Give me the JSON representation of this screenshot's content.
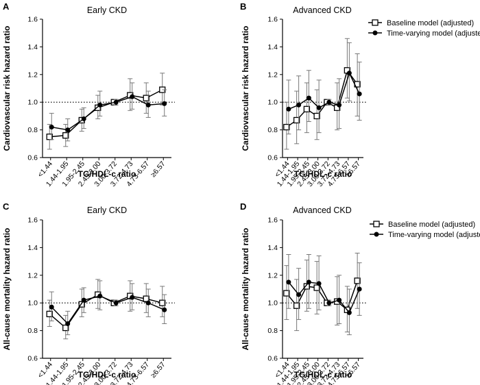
{
  "chart_data": [
    {
      "type": "line",
      "panel_letter": "A",
      "title": "Early CKD",
      "xlabel": "TG/HDL-c ratio",
      "ylabel": "Cardiovascular risk hazard ratio",
      "categories": [
        "<1.44",
        "1.44-1.95",
        "1.95-2.45",
        "2.45-3.00",
        "3.00-3.72",
        "3.72-4.73",
        "4.73-6.57",
        "≥6.57"
      ],
      "ylim": [
        0.6,
        1.6
      ],
      "yticks": [
        "0.6",
        "0.8",
        "1.0",
        "1.2",
        "1.4",
        "1.6"
      ],
      "reference_line": 1.0,
      "legend": false,
      "series": [
        {
          "name": "Baseline model (adjusted)",
          "marker": "open-square",
          "values": [
            0.75,
            0.76,
            0.87,
            0.96,
            1.0,
            1.05,
            1.03,
            1.09
          ],
          "lower": [
            0.66,
            0.68,
            0.79,
            0.88,
            0.98,
            0.94,
            0.92,
            0.98
          ],
          "upper": [
            0.84,
            0.84,
            0.95,
            1.05,
            1.02,
            1.17,
            1.14,
            1.21
          ]
        },
        {
          "name": "Time-varying model (adjusted)",
          "marker": "filled-circle",
          "values": [
            0.82,
            0.8,
            0.88,
            0.98,
            1.0,
            1.04,
            0.98,
            0.99
          ],
          "lower": [
            0.73,
            0.72,
            0.81,
            0.9,
            0.98,
            0.95,
            0.89,
            0.9
          ],
          "upper": [
            0.92,
            0.88,
            0.96,
            1.08,
            1.02,
            1.14,
            1.08,
            1.09
          ]
        }
      ]
    },
    {
      "type": "line",
      "panel_letter": "B",
      "title": "Advanced CKD",
      "xlabel": "TG/HDL-c ratio",
      "ylabel": "Cardiovascular risk hazard ratio",
      "categories": [
        "<1.44",
        "1.44-1.95",
        "1.95-2.45",
        "2.45-3.00",
        "3.00-3.72",
        "3.72-4.73",
        "4.73-6.57",
        "≥6.57"
      ],
      "ylim": [
        0.6,
        1.6
      ],
      "yticks": [
        "0.6",
        "0.8",
        "1.0",
        "1.2",
        "1.4",
        "1.6"
      ],
      "reference_line": 1.0,
      "legend": true,
      "series": [
        {
          "name": "Baseline model (adjusted)",
          "marker": "open-square",
          "values": [
            0.82,
            0.87,
            0.95,
            0.9,
            1.0,
            0.96,
            1.23,
            1.13
          ],
          "lower": [
            0.66,
            0.7,
            0.78,
            0.73,
            0.98,
            0.8,
            1.03,
            0.9
          ],
          "upper": [
            1.0,
            1.08,
            1.14,
            1.09,
            1.02,
            1.14,
            1.46,
            1.35
          ]
        },
        {
          "name": "Time-varying model (adjusted)",
          "marker": "filled-circle",
          "values": [
            0.95,
            0.98,
            1.03,
            0.96,
            1.0,
            0.98,
            1.21,
            1.06
          ],
          "lower": [
            0.77,
            0.8,
            0.86,
            0.78,
            0.98,
            0.81,
            1.01,
            0.87
          ],
          "upper": [
            1.16,
            1.19,
            1.23,
            1.16,
            1.02,
            1.17,
            1.43,
            1.29
          ]
        }
      ]
    },
    {
      "type": "line",
      "panel_letter": "C",
      "title": "Early CKD",
      "xlabel": "TG/HDL-c ratio",
      "ylabel": "All-cause mortality hazard ratio",
      "categories": [
        "<1.44",
        "1.44-1.95",
        "1.95-2.45",
        "2.45-3.00",
        "3.00-3.72",
        "3.72-4.73",
        "4.73-6.57",
        "≥6.57"
      ],
      "ylim": [
        0.6,
        1.6
      ],
      "yticks": [
        "0.6",
        "0.8",
        "1.0",
        "1.2",
        "1.4",
        "1.6"
      ],
      "reference_line": 1.0,
      "legend": false,
      "series": [
        {
          "name": "Baseline model (adjusted)",
          "marker": "open-square",
          "values": [
            0.92,
            0.82,
            0.99,
            1.06,
            1.0,
            1.05,
            1.03,
            1.0
          ],
          "lower": [
            0.83,
            0.74,
            0.9,
            0.96,
            0.98,
            0.94,
            0.93,
            0.9
          ],
          "upper": [
            1.02,
            0.91,
            1.1,
            1.17,
            1.02,
            1.16,
            1.14,
            1.12
          ]
        },
        {
          "name": "Time-varying model (adjusted)",
          "marker": "filled-circle",
          "values": [
            0.97,
            0.85,
            1.02,
            1.05,
            1.0,
            1.04,
            1.0,
            0.95
          ],
          "lower": [
            0.87,
            0.77,
            0.93,
            0.95,
            0.98,
            0.95,
            0.9,
            0.85
          ],
          "upper": [
            1.08,
            0.94,
            1.11,
            1.16,
            1.02,
            1.14,
            1.1,
            1.06
          ]
        }
      ]
    },
    {
      "type": "line",
      "panel_letter": "D",
      "title": "Advanced CKD",
      "xlabel": "TG/HDL-c ratio",
      "ylabel": "All-cause mortality hazard ratio",
      "categories": [
        "<1.44",
        "1.44-1.95",
        "1.95-2.45",
        "2.45-3.00",
        "3.00-3.72",
        "3.72-4.73",
        "4.73-6.57",
        "≥6.57"
      ],
      "ylim": [
        0.6,
        1.6
      ],
      "yticks": [
        "0.6",
        "0.8",
        "1.0",
        "1.2",
        "1.4",
        "1.6"
      ],
      "reference_line": 1.0,
      "legend": true,
      "series": [
        {
          "name": "Baseline model (adjusted)",
          "marker": "open-square",
          "values": [
            1.07,
            0.98,
            1.12,
            1.11,
            1.0,
            1.01,
            0.95,
            1.16
          ],
          "lower": [
            0.88,
            0.8,
            0.94,
            0.92,
            0.98,
            0.84,
            0.79,
            0.96
          ],
          "upper": [
            1.27,
            1.17,
            1.31,
            1.3,
            1.02,
            1.19,
            1.12,
            1.36
          ]
        },
        {
          "name": "Time-varying model (adjusted)",
          "marker": "filled-circle",
          "values": [
            1.15,
            1.06,
            1.15,
            1.14,
            1.0,
            1.02,
            0.93,
            1.1
          ],
          "lower": [
            0.96,
            0.88,
            0.96,
            0.95,
            0.98,
            0.85,
            0.77,
            0.91
          ],
          "upper": [
            1.35,
            1.25,
            1.35,
            1.34,
            1.02,
            1.2,
            1.1,
            1.29
          ]
        }
      ]
    }
  ]
}
